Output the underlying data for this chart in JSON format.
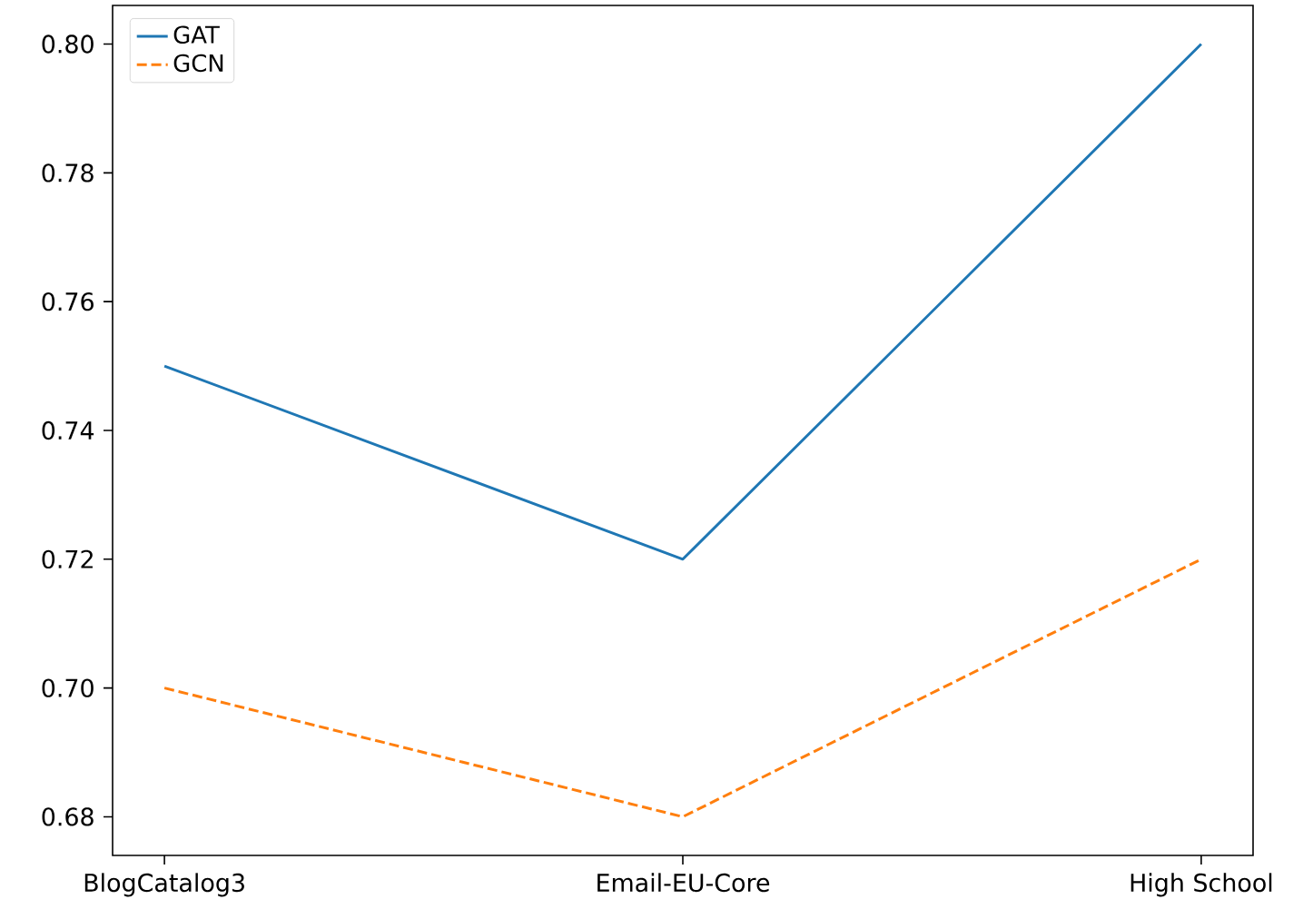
{
  "chart_data": {
    "type": "line",
    "categories": [
      "BlogCatalog3",
      "Email-EU-Core",
      "High School"
    ],
    "series": [
      {
        "name": "GAT",
        "color": "#1f77b4",
        "values": [
          0.75,
          0.72,
          0.8
        ],
        "line_style": "solid"
      },
      {
        "name": "GCN",
        "color": "#ff7f0e",
        "values": [
          0.7,
          0.68,
          0.72
        ],
        "line_style": "dashed"
      }
    ],
    "ylim": [
      0.674,
      0.806
    ],
    "yticks": [
      {
        "value": 0.68,
        "label": "0.68"
      },
      {
        "value": 0.7,
        "label": "0.70"
      },
      {
        "value": 0.72,
        "label": "0.72"
      },
      {
        "value": 0.74,
        "label": "0.74"
      },
      {
        "value": 0.76,
        "label": "0.76"
      },
      {
        "value": 0.78,
        "label": "0.78"
      },
      {
        "value": 0.8,
        "label": "0.80"
      }
    ],
    "legend": "top left",
    "grid": false,
    "marker": "none"
  }
}
